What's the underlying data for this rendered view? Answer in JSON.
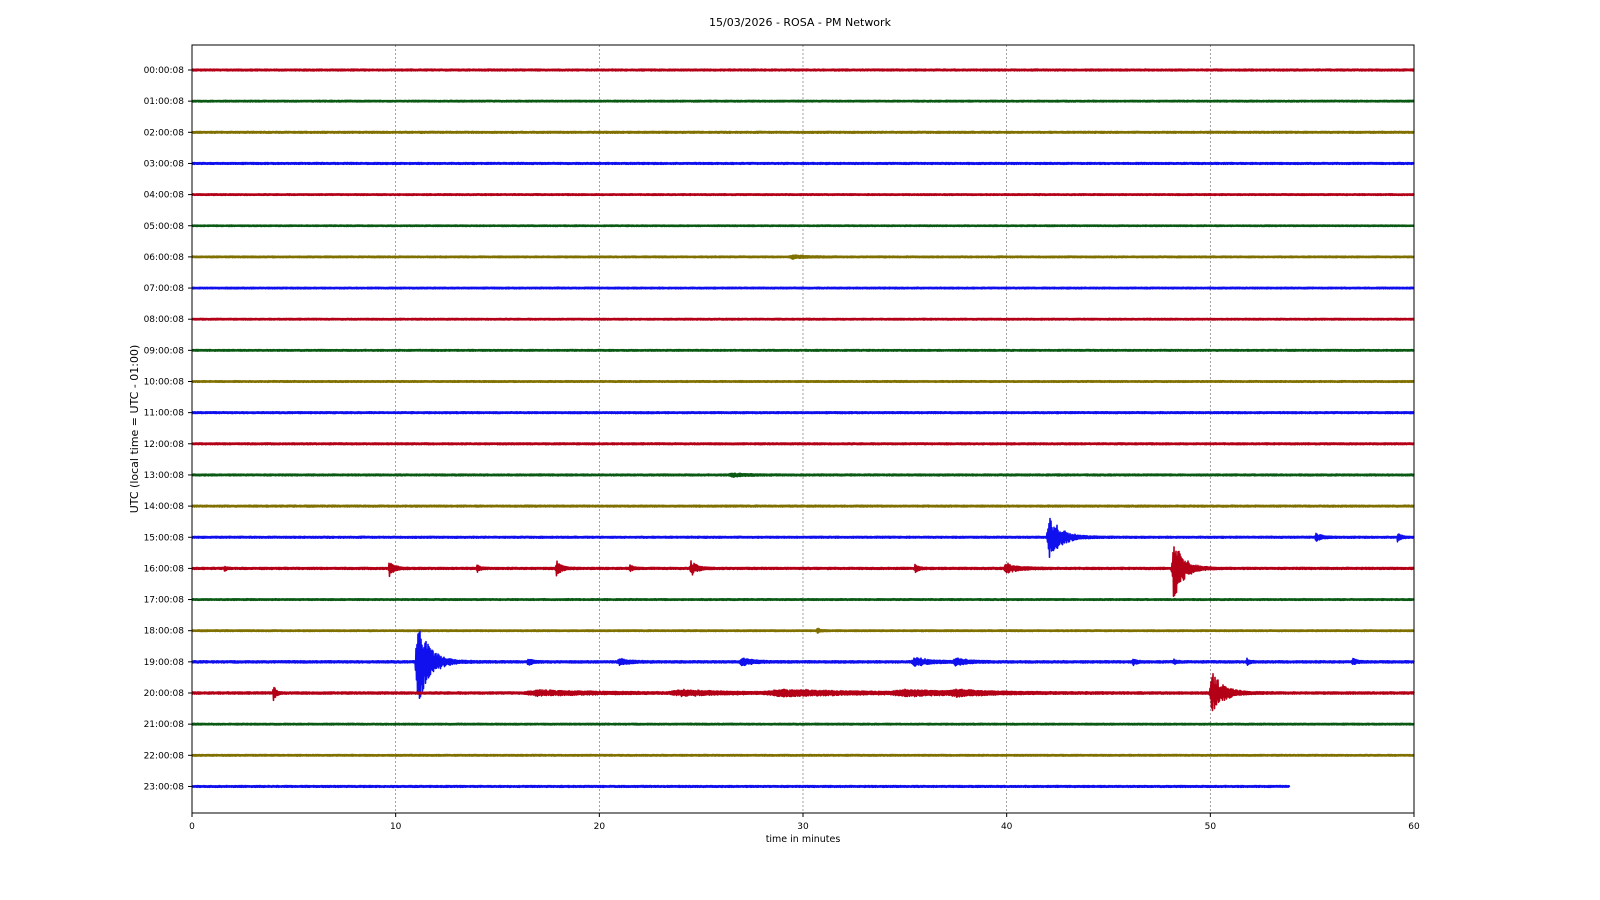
{
  "chart_data": {
    "type": "line",
    "title": "15/03/2026 - ROSA - PM Network",
    "xlabel": "time in minutes",
    "ylabel": "UTC (local time = UTC - 01:00)",
    "xlim": [
      0,
      60
    ],
    "x_ticks": [
      "0",
      "10",
      "20",
      "30",
      "40",
      "50",
      "60"
    ],
    "grid": "vertical dashed at x-ticks",
    "colors": [
      "#b30017",
      "#0b5a14",
      "#807000",
      "#1010ee"
    ],
    "series": [
      {
        "label": "00:00:08",
        "color": "#b30017",
        "end": 60,
        "noise": 0.9,
        "events": []
      },
      {
        "label": "01:00:08",
        "color": "#0b5a14",
        "end": 60,
        "noise": 0.8,
        "events": []
      },
      {
        "label": "02:00:08",
        "color": "#807000",
        "end": 60,
        "noise": 0.9,
        "events": []
      },
      {
        "label": "03:00:08",
        "color": "#1010ee",
        "end": 60,
        "noise": 0.9,
        "events": []
      },
      {
        "label": "04:00:08",
        "color": "#b30017",
        "end": 60,
        "noise": 0.8,
        "events": []
      },
      {
        "label": "05:00:08",
        "color": "#0b5a14",
        "end": 60,
        "noise": 0.7,
        "events": []
      },
      {
        "label": "06:00:08",
        "color": "#807000",
        "end": 60,
        "noise": 0.8,
        "events": [
          [
            29.5,
            1.5,
            0.8
          ]
        ]
      },
      {
        "label": "07:00:08",
        "color": "#1010ee",
        "end": 60,
        "noise": 0.8,
        "events": []
      },
      {
        "label": "08:00:08",
        "color": "#b30017",
        "end": 60,
        "noise": 0.8,
        "events": []
      },
      {
        "label": "09:00:08",
        "color": "#0b5a14",
        "end": 60,
        "noise": 0.8,
        "events": []
      },
      {
        "label": "10:00:08",
        "color": "#807000",
        "end": 60,
        "noise": 0.8,
        "events": []
      },
      {
        "label": "11:00:08",
        "color": "#1010ee",
        "end": 60,
        "noise": 0.9,
        "events": []
      },
      {
        "label": "12:00:08",
        "color": "#b30017",
        "end": 60,
        "noise": 0.9,
        "events": []
      },
      {
        "label": "13:00:08",
        "color": "#0b5a14",
        "end": 60,
        "noise": 0.9,
        "events": [
          [
            26.5,
            1.5,
            0.8
          ]
        ]
      },
      {
        "label": "14:00:08",
        "color": "#807000",
        "end": 60,
        "noise": 0.9,
        "events": []
      },
      {
        "label": "15:00:08",
        "color": "#1010ee",
        "end": 60,
        "noise": 0.9,
        "events": [
          [
            42.1,
            22,
            0.6
          ],
          [
            55.2,
            4,
            0.3
          ],
          [
            59.2,
            6,
            0.15
          ]
        ]
      },
      {
        "label": "16:00:08",
        "color": "#b30017",
        "end": 60,
        "noise": 1.0,
        "events": [
          [
            1.6,
            3,
            0.1
          ],
          [
            9.7,
            8,
            0.25
          ],
          [
            14.0,
            4,
            0.15
          ],
          [
            17.9,
            8,
            0.25
          ],
          [
            21.5,
            4,
            0.15
          ],
          [
            24.5,
            8,
            0.3
          ],
          [
            35.5,
            4,
            0.2
          ],
          [
            40.0,
            5,
            0.6
          ],
          [
            48.2,
            32,
            0.5
          ]
        ]
      },
      {
        "label": "17:00:08",
        "color": "#0b5a14",
        "end": 60,
        "noise": 0.8,
        "events": []
      },
      {
        "label": "18:00:08",
        "color": "#807000",
        "end": 60,
        "noise": 0.8,
        "events": [
          [
            30.7,
            2.5,
            0.15
          ]
        ]
      },
      {
        "label": "19:00:08",
        "color": "#1010ee",
        "end": 60,
        "noise": 1.1,
        "events": [
          [
            11.1,
            46,
            0.6
          ],
          [
            16.5,
            3,
            0.3
          ],
          [
            21.0,
            3,
            0.5
          ],
          [
            27.0,
            4,
            0.5
          ],
          [
            35.5,
            4,
            0.8
          ],
          [
            37.5,
            3.5,
            0.6
          ],
          [
            46.2,
            3,
            0.2
          ],
          [
            48.2,
            2.5,
            0.15
          ],
          [
            51.8,
            3,
            0.15
          ],
          [
            57.0,
            3,
            0.2
          ]
        ]
      },
      {
        "label": "20:00:08",
        "color": "#b30017",
        "end": 60,
        "noise": 1.1,
        "events": [
          [
            4.0,
            8,
            0.15
          ],
          [
            17.0,
            2.5,
            3.0
          ],
          [
            24.0,
            2.5,
            2.5
          ],
          [
            29.0,
            3,
            4.0
          ],
          [
            35.0,
            2.5,
            3.0
          ],
          [
            37.5,
            2.5,
            1.5
          ],
          [
            50.1,
            20,
            0.6
          ]
        ]
      },
      {
        "label": "21:00:08",
        "color": "#0b5a14",
        "end": 60,
        "noise": 0.8,
        "events": []
      },
      {
        "label": "22:00:08",
        "color": "#807000",
        "end": 60,
        "noise": 0.8,
        "events": []
      },
      {
        "label": "23:00:08",
        "color": "#1010ee",
        "end": 53.9,
        "noise": 0.9,
        "events": []
      }
    ]
  }
}
